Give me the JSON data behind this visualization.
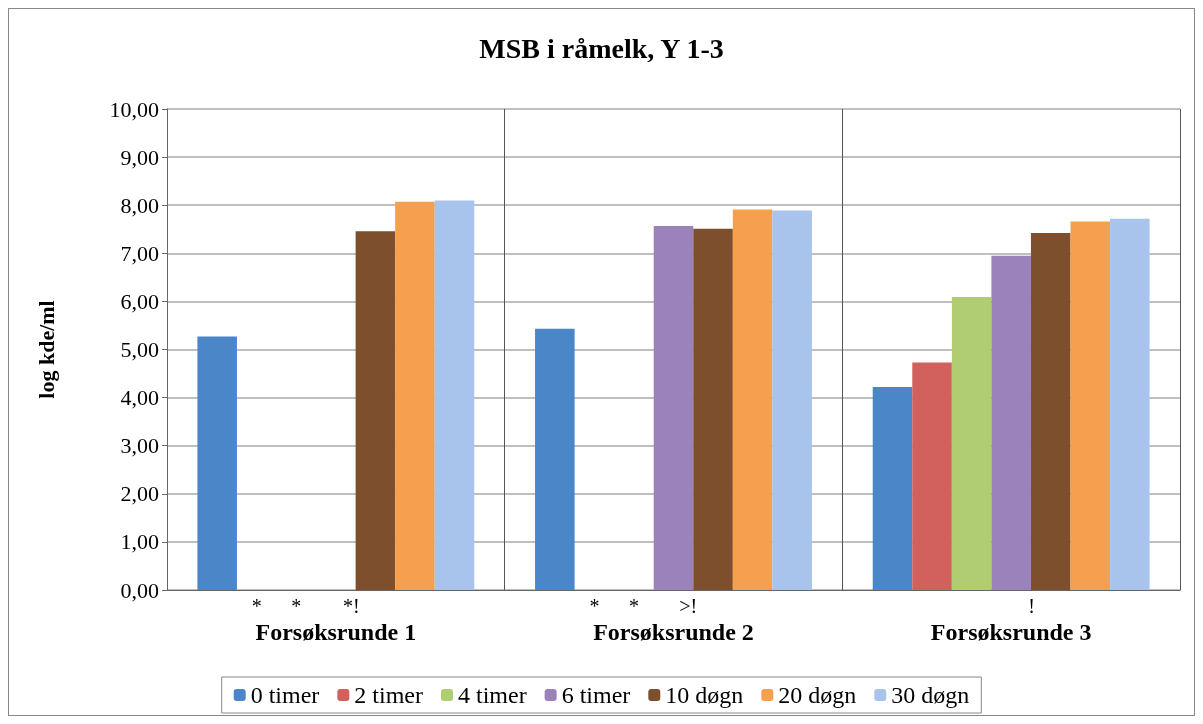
{
  "chart_data": {
    "type": "bar",
    "title": "MSB i råmelk, Y 1-3",
    "ylabel": "log kde/ml",
    "categories": [
      "Forsøksrunde 1",
      "Forsøksrunde 2",
      "Forsøksrunde 3"
    ],
    "series": [
      {
        "name": "0 timer",
        "color": "#4a86c8",
        "values": [
          5.27,
          5.43,
          4.22
        ]
      },
      {
        "name": "2 timer",
        "color": "#d2605c",
        "values": [
          null,
          null,
          4.73
        ]
      },
      {
        "name": "4 timer",
        "color": "#b0cd72",
        "values": [
          null,
          null,
          6.09
        ]
      },
      {
        "name": "6 timer",
        "color": "#9b82bb",
        "values": [
          null,
          7.57,
          6.95
        ]
      },
      {
        "name": "10 døgn",
        "color": "#7d4f2c",
        "values": [
          7.46,
          7.51,
          7.42
        ]
      },
      {
        "name": "20 døgn",
        "color": "#f5a04e",
        "values": [
          8.07,
          7.91,
          7.66
        ]
      },
      {
        "name": "30 døgn",
        "color": "#a9c4ec",
        "values": [
          8.1,
          7.89,
          7.72
        ]
      }
    ],
    "ylim": [
      0,
      10
    ],
    "yticks": [
      {
        "value": 0,
        "label": "0,00"
      },
      {
        "value": 1,
        "label": "1,00"
      },
      {
        "value": 2,
        "label": "2,00"
      },
      {
        "value": 3,
        "label": "3,00"
      },
      {
        "value": 4,
        "label": "4,00"
      },
      {
        "value": 5,
        "label": "5,00"
      },
      {
        "value": 6,
        "label": "6,00"
      },
      {
        "value": 7,
        "label": "7,00"
      },
      {
        "value": 8,
        "label": "8,00"
      },
      {
        "value": 9,
        "label": "9,00"
      },
      {
        "value": 10,
        "label": "10,00"
      }
    ],
    "annotations": [
      "* * *!",
      "* * >!",
      "!"
    ],
    "grid": true,
    "legend": "bottom"
  }
}
